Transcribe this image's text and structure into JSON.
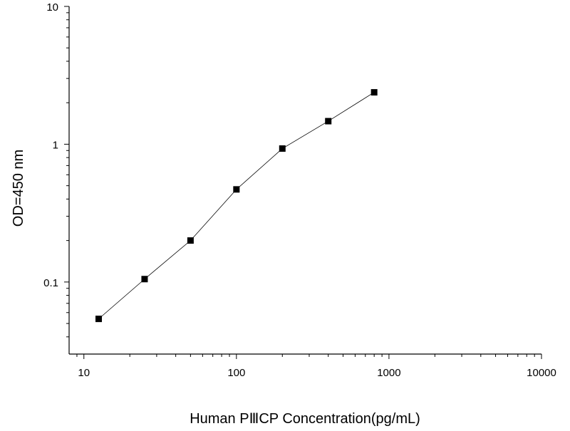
{
  "chart_data": {
    "type": "line",
    "title": "",
    "xlabel": "Human PⅢCP Concentration(pg/mL)",
    "ylabel": "OD=450 nm",
    "xscale": "log",
    "yscale": "log",
    "xlim": [
      8,
      10000
    ],
    "ylim": [
      0.03,
      10
    ],
    "x_ticks": [
      10,
      100,
      1000,
      10000
    ],
    "x_tick_labels": [
      "10",
      "100",
      "1000",
      "10000"
    ],
    "y_ticks": [
      0.1,
      1,
      10
    ],
    "y_tick_labels": [
      "0.1",
      "1",
      "10"
    ],
    "grid": false,
    "legend": "none",
    "marker": "square",
    "series": [
      {
        "x": [
          12.5,
          25,
          50,
          100,
          200,
          400,
          800
        ],
        "y": [
          0.054,
          0.105,
          0.2,
          0.47,
          0.93,
          1.47,
          2.38
        ],
        "color": "#000000"
      }
    ]
  }
}
